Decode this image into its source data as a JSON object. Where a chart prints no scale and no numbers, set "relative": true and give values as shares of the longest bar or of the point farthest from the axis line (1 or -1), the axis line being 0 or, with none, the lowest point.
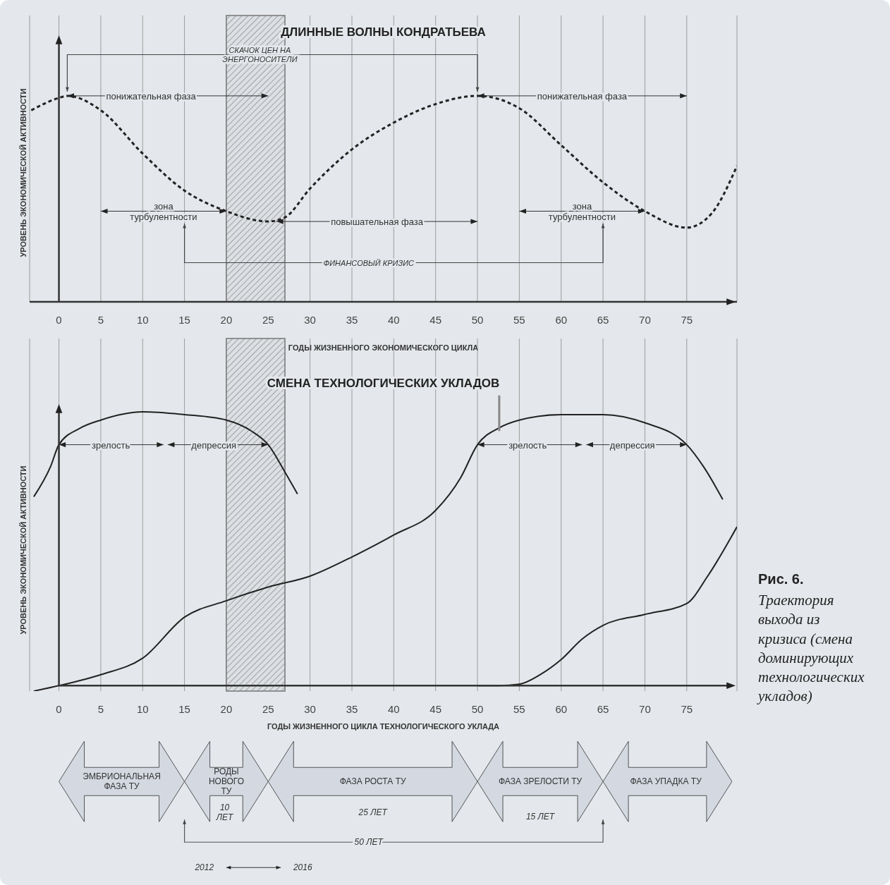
{
  "chart_data": [
    {
      "type": "line",
      "title": "ДЛИННЫЕ ВОЛНЫ КОНДРАТЬЕВА",
      "xlabel": "ГОДЫ ЖИЗНЕННОГО ЭКОНОМИЧЕСКОГО ЦИКЛА",
      "ylabel": "УРОВЕНЬ ЭКОНОМИЧЕСКОЙ АКТИВНОСТИ",
      "relative": true,
      "xlim": [
        -3.5,
        81
      ],
      "xticks": [
        0,
        5,
        10,
        15,
        20,
        25,
        30,
        35,
        40,
        45,
        50,
        55,
        60,
        65,
        70,
        75
      ],
      "grid": "x",
      "line_style": "dashed",
      "bands": [
        {
          "axis": "x",
          "from": 20,
          "to": 27,
          "color": "#777777"
        }
      ],
      "series": [
        {
          "color": "#222222",
          "x": [
            -3.3,
            0,
            1,
            5,
            10,
            15,
            20,
            25,
            27,
            30,
            35,
            40,
            45,
            50,
            55,
            60,
            65,
            70,
            75,
            78,
            81
          ],
          "values": [
            0.93,
            0.99,
            1,
            0.93,
            0.72,
            0.54,
            0.44,
            0.39,
            0.41,
            0.55,
            0.74,
            0.87,
            0.96,
            1,
            0.94,
            0.76,
            0.58,
            0.44,
            0.36,
            0.43,
            0.66
          ]
        }
      ],
      "annotations": [
        "СКАЧОК ЦЕН НА ЭНЕРГОНОСИТЕЛИ",
        "понижательная фаза",
        "понижательная фаза",
        "зона турбулентности",
        "зона турбулентности",
        "повышательная фаза",
        "ФИНАНСОВЫЙ КРИЗИС"
      ]
    },
    {
      "type": "line",
      "title": "СМЕНА ТЕХНОЛОГИЧЕСКИХ УКЛАДОВ",
      "xlabel": "ГОДЫ ЖИЗНЕННОГО ЦИКЛА ТЕХНОЛОГИЧЕСКОГО УКЛАДА",
      "ylabel": "УРОВЕНЬ ЭКОНОМИЧЕСКОЙ АКТИВНОСТИ",
      "relative": true,
      "xlim": [
        -3.5,
        81
      ],
      "xticks": [
        0,
        5,
        10,
        15,
        20,
        25,
        30,
        35,
        40,
        45,
        50,
        55,
        60,
        65,
        70,
        75
      ],
      "grid": "x",
      "line_style": "solid",
      "bands": [
        {
          "axis": "x",
          "from": 20,
          "to": 27,
          "color": "#777777"
        }
      ],
      "series": [
        {
          "color": "#222222",
          "x": [
            -3,
            -1,
            0,
            2.5,
            5,
            10,
            15,
            20,
            23,
            25,
            27,
            28.5
          ],
          "values": [
            0.69,
            0.8,
            0.88,
            0.94,
            0.97,
            1,
            0.99,
            0.97,
            0.93,
            0.88,
            0.78,
            0.7
          ]
        },
        {
          "color": "#222222",
          "x": [
            -3,
            0,
            5,
            10,
            15,
            20,
            25,
            30,
            35,
            40,
            45,
            48,
            50,
            52.5,
            55,
            60,
            65,
            70,
            75,
            77,
            79.3
          ],
          "values": [
            -0.02,
            0,
            0.04,
            0.1,
            0.25,
            0.31,
            0.36,
            0.4,
            0.47,
            0.55,
            0.64,
            0.76,
            0.88,
            0.94,
            0.97,
            0.99,
            0.99,
            0.96,
            0.88,
            0.8,
            0.68
          ]
        },
        {
          "color": "#222222",
          "x": [
            50,
            52.5,
            55,
            57.5,
            60,
            62.5,
            65,
            70,
            75,
            77.5,
            81
          ],
          "values": [
            0,
            0,
            0.005,
            0.04,
            0.095,
            0.17,
            0.22,
            0.26,
            0.3,
            0.4,
            0.58
          ]
        }
      ],
      "annotations": [
        "зрелость",
        "депрессия",
        "зрелость",
        "депрессия",
        "ЭМБРИОНАЛЬНАЯ ФАЗА ТУ",
        "РОДЫ НОВОГО ТУ",
        "10 ЛЕТ",
        "ФАЗА РОСТА ТУ",
        "25 ЛЕТ",
        "ФАЗА ЗРЕЛОСТИ ТУ",
        "15 ЛЕТ",
        "ФАЗА УПАДКА ТУ",
        "50 ЛЕТ",
        "2012",
        "2016",
        "Рис. 6.",
        "Траектория выхода из кризиса (смена доминирующих технологических укладов)"
      ]
    }
  ]
}
